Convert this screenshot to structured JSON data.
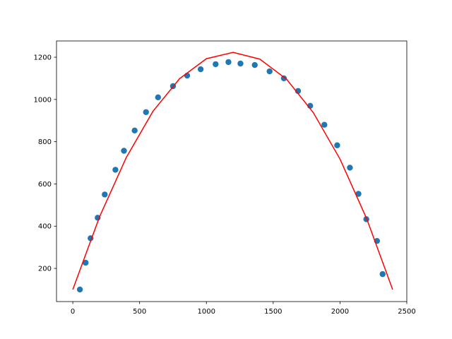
{
  "chart_data": {
    "type": "scatter",
    "xlim": [
      -122,
      2500
    ],
    "xticks": [
      0,
      500,
      1000,
      1500,
      2000,
      2500
    ],
    "ylim": [
      43,
      1277
    ],
    "yticks": [
      200,
      400,
      600,
      800,
      1000,
      1200
    ],
    "grid": false,
    "series": [
      {
        "type": "scatter",
        "color": "#1f77b4",
        "x": [
          53,
          96,
          133,
          186,
          239,
          319,
          383,
          463,
          548,
          638,
          750,
          856,
          957,
          1069,
          1165,
          1255,
          1362,
          1473,
          1580,
          1686,
          1777,
          1883,
          1979,
          2074,
          2138,
          2197,
          2277,
          2319
        ],
        "values": [
          100,
          227,
          343,
          440,
          550,
          667,
          757,
          853,
          940,
          1010,
          1063,
          1113,
          1143,
          1167,
          1177,
          1170,
          1163,
          1133,
          1100,
          1040,
          970,
          880,
          783,
          677,
          553,
          433,
          330,
          173
        ]
      },
      {
        "type": "line",
        "color": "#ff0000",
        "x": [
          0,
          200,
          400,
          600,
          800,
          1000,
          1200,
          1400,
          1600,
          1800,
          2000,
          2200,
          2394
        ],
        "values": [
          100,
          444,
          725,
          944,
          1099,
          1193,
          1223,
          1191,
          1096,
          938,
          718,
          435,
          100
        ]
      }
    ]
  }
}
